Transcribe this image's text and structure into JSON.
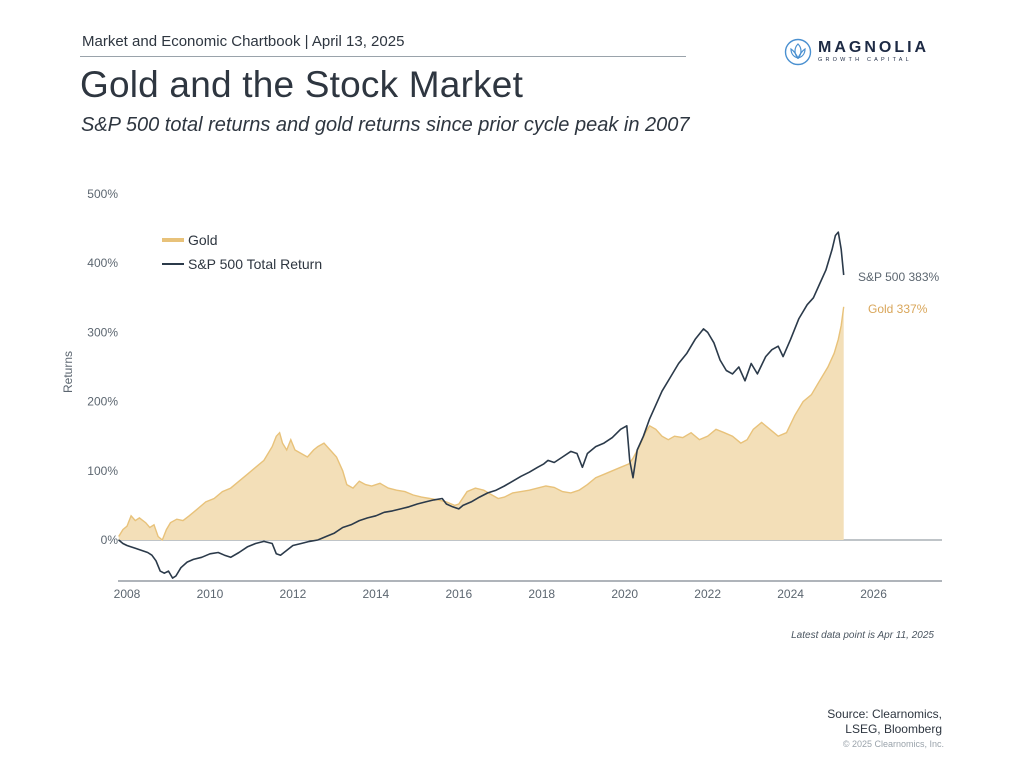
{
  "header": {
    "kicker": "Market and Economic Chartbook | April 13, 2025",
    "title": "Gold and the Stock Market",
    "subtitle": "S&P 500 total returns and gold returns since prior cycle peak in 2007"
  },
  "logo": {
    "icon": "lotus-icon",
    "name": "MAGNOLIA",
    "tagline": "GROWTH CAPITAL"
  },
  "colors": {
    "gold_fill": "#f3dfb8",
    "gold_line": "#e8c27a",
    "sp500_line": "#2b3a4a",
    "gold_label": "#d9a65a",
    "sp500_label": "#5c6670",
    "axis": "#7f8890",
    "logo": "#4a90d0"
  },
  "chart_data": {
    "type": "area",
    "title": "Gold and the Stock Market",
    "xlabel": "",
    "ylabel": "Returns",
    "xlim": [
      2007.8,
      2027.8
    ],
    "ylim": [
      -60,
      500
    ],
    "x_ticks": [
      2008,
      2010,
      2012,
      2014,
      2016,
      2018,
      2020,
      2022,
      2024,
      2026
    ],
    "x_tick_labels": [
      "2008",
      "2010",
      "2012",
      "2014",
      "2016",
      "2018",
      "2020",
      "2022",
      "2024",
      "2026"
    ],
    "y_ticks": [
      0,
      100,
      200,
      300,
      400,
      500
    ],
    "y_tick_labels": [
      "0%",
      "100%",
      "200%",
      "300%",
      "400%",
      "500%"
    ],
    "grid": false,
    "legend_position": "top-left",
    "legend": [
      {
        "name": "Gold",
        "style": "area"
      },
      {
        "name": "S&P 500 Total Return",
        "style": "line"
      }
    ],
    "end_labels": [
      {
        "series": "S&P 500",
        "text": "S&P 500 383%"
      },
      {
        "series": "Gold",
        "text": "Gold 337%"
      }
    ],
    "annotation": "Latest data point is Apr 11, 2025",
    "series": [
      {
        "name": "Gold",
        "type": "area",
        "x": [
          2007.8,
          2007.9,
          2008.0,
          2008.1,
          2008.2,
          2008.3,
          2008.45,
          2008.55,
          2008.65,
          2008.75,
          2008.85,
          2008.95,
          2009.05,
          2009.2,
          2009.35,
          2009.5,
          2009.7,
          2009.9,
          2010.1,
          2010.3,
          2010.5,
          2010.7,
          2010.9,
          2011.1,
          2011.3,
          2011.5,
          2011.6,
          2011.68,
          2011.75,
          2011.85,
          2011.95,
          2012.05,
          2012.2,
          2012.35,
          2012.5,
          2012.6,
          2012.75,
          2012.9,
          2013.05,
          2013.2,
          2013.3,
          2013.45,
          2013.6,
          2013.75,
          2013.9,
          2014.1,
          2014.3,
          2014.5,
          2014.7,
          2014.9,
          2015.1,
          2015.3,
          2015.5,
          2015.7,
          2015.9,
          2016.0,
          2016.2,
          2016.4,
          2016.6,
          2016.8,
          2016.95,
          2017.1,
          2017.3,
          2017.5,
          2017.7,
          2017.9,
          2018.1,
          2018.3,
          2018.5,
          2018.7,
          2018.9,
          2019.1,
          2019.3,
          2019.5,
          2019.7,
          2019.9,
          2020.1,
          2020.2,
          2020.35,
          2020.5,
          2020.6,
          2020.75,
          2020.9,
          2021.05,
          2021.2,
          2021.4,
          2021.6,
          2021.8,
          2022.0,
          2022.2,
          2022.4,
          2022.6,
          2022.8,
          2022.95,
          2023.1,
          2023.3,
          2023.5,
          2023.7,
          2023.9,
          2024.1,
          2024.3,
          2024.5,
          2024.7,
          2024.9,
          2025.05,
          2025.15,
          2025.22,
          2025.28
        ],
        "values": [
          5,
          15,
          20,
          35,
          28,
          32,
          25,
          18,
          22,
          5,
          0,
          15,
          25,
          30,
          28,
          35,
          45,
          55,
          60,
          70,
          75,
          85,
          95,
          105,
          115,
          135,
          150,
          155,
          140,
          130,
          145,
          130,
          125,
          120,
          130,
          135,
          140,
          130,
          120,
          100,
          80,
          75,
          85,
          80,
          78,
          82,
          75,
          72,
          70,
          65,
          62,
          60,
          58,
          55,
          50,
          52,
          70,
          75,
          72,
          65,
          60,
          62,
          68,
          70,
          72,
          75,
          78,
          76,
          70,
          68,
          72,
          80,
          90,
          95,
          100,
          105,
          110,
          118,
          135,
          155,
          165,
          160,
          150,
          145,
          150,
          148,
          155,
          145,
          150,
          160,
          155,
          150,
          140,
          145,
          160,
          170,
          160,
          150,
          155,
          180,
          200,
          210,
          230,
          250,
          270,
          290,
          310,
          337
        ]
      },
      {
        "name": "S&P 500 Total Return",
        "type": "line",
        "x": [
          2007.8,
          2007.9,
          2008.0,
          2008.1,
          2008.2,
          2008.35,
          2008.5,
          2008.6,
          2008.7,
          2008.8,
          2008.9,
          2009.0,
          2009.1,
          2009.18,
          2009.3,
          2009.45,
          2009.6,
          2009.8,
          2010.0,
          2010.2,
          2010.35,
          2010.5,
          2010.7,
          2010.9,
          2011.1,
          2011.3,
          2011.5,
          2011.6,
          2011.7,
          2011.85,
          2012.0,
          2012.2,
          2012.4,
          2012.6,
          2012.8,
          2013.0,
          2013.2,
          2013.4,
          2013.6,
          2013.8,
          2014.0,
          2014.2,
          2014.4,
          2014.6,
          2014.8,
          2015.0,
          2015.2,
          2015.4,
          2015.6,
          2015.7,
          2015.85,
          2016.0,
          2016.1,
          2016.3,
          2016.5,
          2016.7,
          2016.9,
          2017.1,
          2017.3,
          2017.5,
          2017.7,
          2017.9,
          2018.05,
          2018.15,
          2018.3,
          2018.5,
          2018.7,
          2018.85,
          2018.98,
          2019.1,
          2019.3,
          2019.5,
          2019.7,
          2019.9,
          2020.05,
          2020.12,
          2020.2,
          2020.3,
          2020.45,
          2020.6,
          2020.75,
          2020.9,
          2021.1,
          2021.3,
          2021.5,
          2021.7,
          2021.9,
          2022.0,
          2022.15,
          2022.3,
          2022.45,
          2022.6,
          2022.75,
          2022.9,
          2023.05,
          2023.2,
          2023.4,
          2023.55,
          2023.7,
          2023.82,
          2024.0,
          2024.2,
          2024.4,
          2024.55,
          2024.7,
          2024.85,
          2025.0,
          2025.08,
          2025.15,
          2025.22,
          2025.28
        ],
        "values": [
          0,
          -5,
          -8,
          -10,
          -12,
          -15,
          -18,
          -22,
          -30,
          -45,
          -48,
          -45,
          -55,
          -52,
          -40,
          -32,
          -28,
          -25,
          -20,
          -18,
          -22,
          -25,
          -18,
          -10,
          -5,
          -2,
          -5,
          -20,
          -22,
          -15,
          -8,
          -5,
          -2,
          0,
          5,
          10,
          18,
          22,
          28,
          32,
          35,
          40,
          42,
          45,
          48,
          52,
          55,
          58,
          60,
          52,
          48,
          45,
          50,
          55,
          62,
          68,
          72,
          78,
          85,
          92,
          98,
          105,
          110,
          115,
          112,
          120,
          128,
          125,
          105,
          125,
          135,
          140,
          148,
          160,
          165,
          115,
          90,
          130,
          150,
          175,
          195,
          215,
          235,
          255,
          270,
          290,
          305,
          300,
          285,
          260,
          245,
          240,
          250,
          230,
          255,
          240,
          265,
          275,
          280,
          265,
          290,
          320,
          340,
          350,
          370,
          390,
          420,
          440,
          445,
          420,
          383
        ]
      }
    ]
  },
  "footer": {
    "latest_data": "Latest data point is Apr 11, 2025",
    "source_line1": "Source: Clearnomics,",
    "source_line2": "LSEG, Bloomberg",
    "copyright": "© 2025 Clearnomics, Inc."
  }
}
